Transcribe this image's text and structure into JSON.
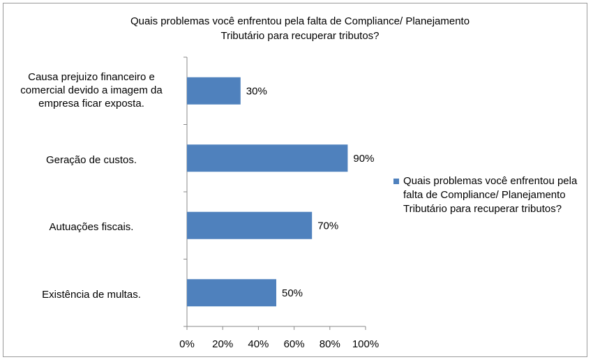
{
  "chart_data": {
    "type": "bar",
    "orientation": "horizontal",
    "title": "Quais problemas você enfrentou pela falta de Compliance/ Planejamento Tributário para recuperar tributos?",
    "categories": [
      "Causa prejuizo financeiro e comercial devido a imagem da empresa ficar exposta.",
      "Geração de custos.",
      "Autuações fiscais.",
      "Existência de multas."
    ],
    "series": [
      {
        "name": "Quais problemas você enfrentou pela falta de Compliance/ Planejamento Tributário para recuperar tributos?",
        "values": [
          30,
          90,
          70,
          50
        ],
        "color": "#4f81bd"
      }
    ],
    "data_labels": [
      "30%",
      "90%",
      "70%",
      "50%"
    ],
    "x_ticks": [
      "0%",
      "20%",
      "40%",
      "60%",
      "80%",
      "100%"
    ],
    "xlim": [
      0,
      100
    ],
    "grid": false,
    "legend_position": "right"
  }
}
